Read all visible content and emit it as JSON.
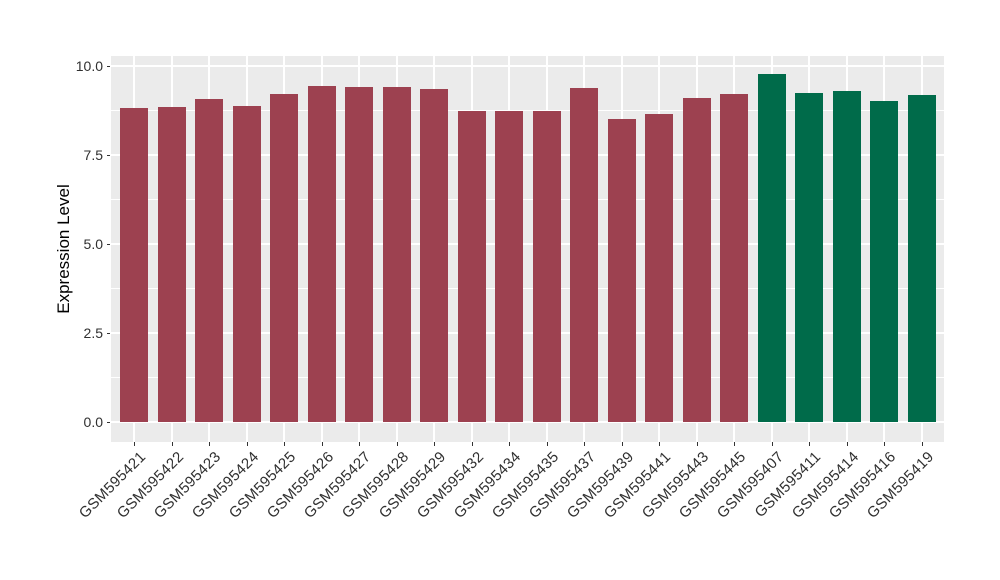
{
  "chart_data": {
    "type": "bar",
    "title": "",
    "xlabel": "",
    "ylabel": "Expression Level",
    "ylim": [
      0,
      10.28
    ],
    "yticks": [
      0.0,
      2.5,
      5.0,
      7.5,
      10.0
    ],
    "ytick_labels": [
      "0.0",
      "2.5",
      "5.0",
      "7.5",
      "10.0"
    ],
    "yticks_minor": [
      1.25,
      3.75,
      6.25,
      8.75
    ],
    "grid": "on",
    "legend_position": "none",
    "panel_background": "#EBEBEB",
    "gridline_color": "#FFFFFF",
    "categories": [
      "GSM595421",
      "GSM595422",
      "GSM595423",
      "GSM595424",
      "GSM595425",
      "GSM595426",
      "GSM595427",
      "GSM595428",
      "GSM595429",
      "GSM595432",
      "GSM595434",
      "GSM595435",
      "GSM595437",
      "GSM595439",
      "GSM595441",
      "GSM595443",
      "GSM595445",
      "GSM595407",
      "GSM595411",
      "GSM595414",
      "GSM595416",
      "GSM595419"
    ],
    "values": [
      8.82,
      8.85,
      9.07,
      8.88,
      9.21,
      9.43,
      9.4,
      9.42,
      9.36,
      8.73,
      8.73,
      8.73,
      9.38,
      8.51,
      8.66,
      9.11,
      9.21,
      9.78,
      9.25,
      9.29,
      9.01,
      9.19
    ],
    "groups": [
      "maroon",
      "maroon",
      "maroon",
      "maroon",
      "maroon",
      "maroon",
      "maroon",
      "maroon",
      "maroon",
      "maroon",
      "maroon",
      "maroon",
      "maroon",
      "maroon",
      "maroon",
      "maroon",
      "maroon",
      "green",
      "green",
      "green",
      "green",
      "green"
    ],
    "group_colors": {
      "maroon": "#9D4150",
      "green": "#006B4A"
    }
  }
}
